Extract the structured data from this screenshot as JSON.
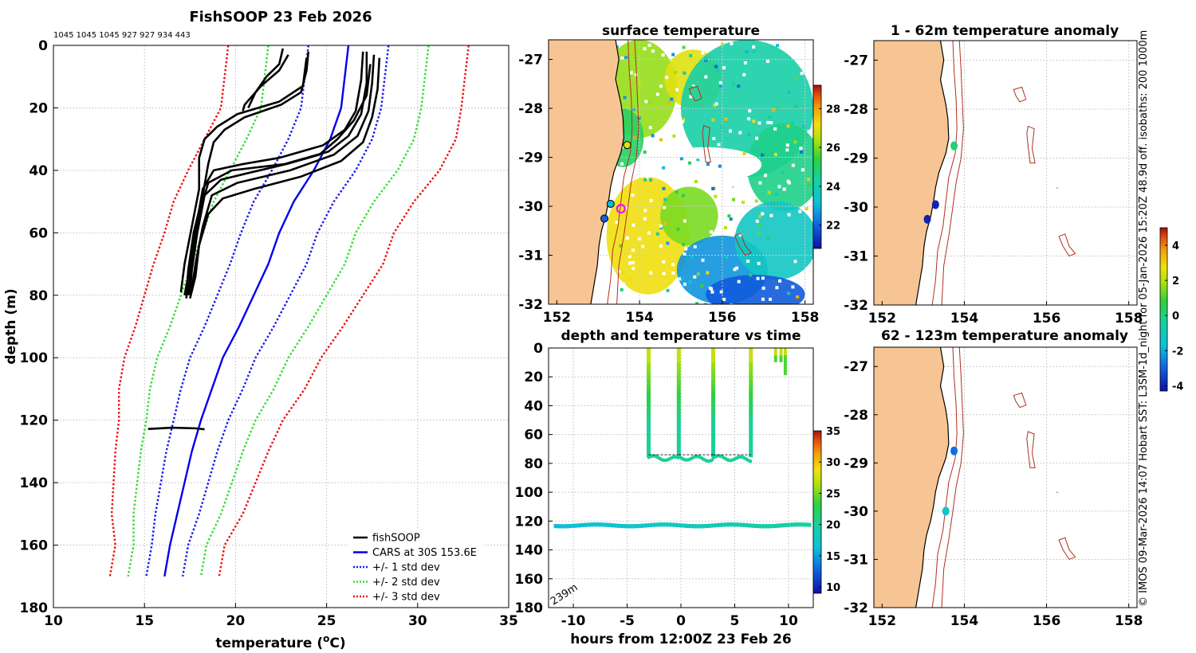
{
  "figure": {
    "title": "FishSOOP 23 Feb 2026",
    "drop_counts": "1045 1045 1045 927 927 934 443",
    "side_caption": "© IMOS 09-Mar-2026 14:07 Hobart SST: L3SM-1d_night for 05-Jan-2026 15:20Z 48.9d off. isobaths: 200  1000m"
  },
  "colors": {
    "fishsoop": "#000000",
    "cars": "#0000ee",
    "std1": "#1a1aee",
    "std2": "#33dd33",
    "std3": "#ee1111",
    "land": "#f7c593",
    "coast": "#000000",
    "isobath": "#b03020",
    "grid": "#cccccc"
  },
  "chart_data": [
    {
      "id": "profile",
      "type": "line",
      "title": "",
      "xlabel": "temperature (°C)",
      "ylabel": "depth (m)",
      "xlim": [
        10,
        35
      ],
      "ylim": [
        180,
        0
      ],
      "xticks": [
        10,
        15,
        20,
        25,
        30,
        35
      ],
      "yticks": [
        0,
        20,
        40,
        60,
        80,
        100,
        120,
        140,
        160,
        180
      ],
      "grid": true,
      "legend": {
        "placement": "bottom-right",
        "entries": [
          "fishSOOP",
          "CARS at 30S 153.6E",
          "+/- 1 std dev",
          "+/- 2 std dev",
          "+/- 3 std dev"
        ]
      },
      "cars_mean": {
        "depth": [
          0,
          10,
          20,
          30,
          40,
          50,
          60,
          70,
          80,
          90,
          100,
          110,
          120,
          130,
          140,
          150,
          160,
          170
        ],
        "temp": [
          26.2,
          26.0,
          25.8,
          25.2,
          24.3,
          23.2,
          22.4,
          21.8,
          21.0,
          20.2,
          19.3,
          18.7,
          18.1,
          17.6,
          17.2,
          16.8,
          16.4,
          16.1
        ]
      },
      "std_offsets": {
        "depth": [
          0,
          10,
          20,
          30,
          40,
          50,
          60,
          70,
          80,
          90,
          100,
          110,
          120,
          130,
          140,
          150,
          160,
          170
        ],
        "sd": [
          2.2,
          2.2,
          2.2,
          2.3,
          2.3,
          2.2,
          2.1,
          2.1,
          2.0,
          1.9,
          1.8,
          1.7,
          1.5,
          1.4,
          1.3,
          1.2,
          1.0,
          1.0
        ]
      },
      "fishsoop_profiles": [
        [
          [
            22.6,
            1
          ],
          [
            22.4,
            6
          ],
          [
            21.7,
            10
          ],
          [
            21.1,
            15
          ],
          [
            20.7,
            20
          ]
        ],
        [
          [
            22.9,
            3
          ],
          [
            22.4,
            8
          ],
          [
            21.4,
            13
          ],
          [
            20.5,
            19
          ],
          [
            20.4,
            21
          ]
        ],
        [
          [
            24.0,
            2
          ],
          [
            23.9,
            8
          ],
          [
            23.6,
            15
          ],
          [
            22.5,
            19
          ],
          [
            20.5,
            23
          ],
          [
            19.4,
            27
          ],
          [
            18.8,
            31
          ],
          [
            18.5,
            38
          ],
          [
            18.2,
            48
          ],
          [
            17.7,
            60
          ],
          [
            17.4,
            72
          ],
          [
            17.3,
            81
          ]
        ],
        [
          [
            23.9,
            4
          ],
          [
            23.7,
            13
          ],
          [
            22.4,
            18
          ],
          [
            20.1,
            22
          ],
          [
            19.0,
            26
          ],
          [
            18.3,
            30
          ],
          [
            18.0,
            36
          ],
          [
            18.0,
            46
          ],
          [
            17.6,
            58
          ],
          [
            17.2,
            70
          ],
          [
            17.0,
            79
          ]
        ],
        [
          [
            27.2,
            2
          ],
          [
            27.2,
            12
          ],
          [
            26.9,
            22
          ],
          [
            26.2,
            29
          ],
          [
            25.1,
            34
          ],
          [
            22.7,
            38
          ],
          [
            19.8,
            40
          ],
          [
            18.5,
            44
          ],
          [
            18.1,
            52
          ],
          [
            17.8,
            62
          ],
          [
            17.5,
            74
          ],
          [
            17.4,
            80
          ]
        ],
        [
          [
            27.6,
            3
          ],
          [
            27.5,
            12
          ],
          [
            27.3,
            21
          ],
          [
            26.7,
            29
          ],
          [
            25.4,
            35
          ],
          [
            23.0,
            40
          ],
          [
            20.1,
            44
          ],
          [
            18.7,
            48
          ],
          [
            18.2,
            58
          ],
          [
            17.8,
            70
          ],
          [
            17.6,
            78
          ]
        ],
        [
          [
            27.0,
            2
          ],
          [
            26.9,
            11
          ],
          [
            26.6,
            21
          ],
          [
            26.0,
            27
          ],
          [
            24.8,
            32
          ],
          [
            22.4,
            36
          ],
          [
            20.4,
            38
          ],
          [
            18.8,
            40
          ],
          [
            18.2,
            46
          ],
          [
            17.9,
            56
          ],
          [
            17.6,
            68
          ],
          [
            17.2,
            80
          ]
        ],
        [
          [
            27.9,
            4
          ],
          [
            27.8,
            14
          ],
          [
            27.5,
            23
          ],
          [
            27.0,
            31
          ],
          [
            25.8,
            37
          ],
          [
            23.6,
            42
          ],
          [
            21.0,
            46
          ],
          [
            19.3,
            49
          ],
          [
            18.5,
            54
          ],
          [
            18.0,
            64
          ],
          [
            17.8,
            74
          ],
          [
            17.5,
            81
          ]
        ],
        [
          [
            27.4,
            6
          ],
          [
            27.2,
            16
          ],
          [
            26.5,
            24
          ],
          [
            25.6,
            30
          ],
          [
            24.6,
            35
          ],
          [
            22.8,
            38
          ],
          [
            20.6,
            41
          ],
          [
            19.2,
            43
          ],
          [
            18.3,
            48
          ],
          [
            17.9,
            60
          ],
          [
            17.6,
            72
          ],
          [
            17.5,
            80
          ]
        ],
        [
          [
            15.2,
            122.8
          ],
          [
            16.5,
            122.4
          ],
          [
            17.8,
            122.6
          ],
          [
            18.3,
            122.9
          ]
        ]
      ]
    },
    {
      "id": "sst",
      "type": "heatmap",
      "title": "surface temperature",
      "xlim": [
        151.8,
        158.2
      ],
      "ylim": [
        -32,
        -26.6
      ],
      "xticks": [
        152,
        154,
        156,
        158
      ],
      "yticks": [
        -27,
        -28,
        -29,
        -30,
        -31,
        -32
      ],
      "colorbar": {
        "range": [
          20.8,
          29.2
        ],
        "ticks": [
          22,
          24,
          26,
          28
        ]
      },
      "stations": [
        {
          "lon": 153.7,
          "lat": -28.75,
          "temp": 27.0
        },
        {
          "lon": 153.3,
          "lat": -29.95,
          "temp": 23.0
        },
        {
          "lon": 153.15,
          "lat": -30.25,
          "temp": 22.0
        },
        {
          "lon": 153.55,
          "lat": -30.05,
          "temp": 0,
          "marker": "ship"
        }
      ]
    },
    {
      "id": "depth_time",
      "type": "scatter",
      "title": "depth and temperature vs time",
      "xlabel": "hours from 12:00Z 23 Feb 26",
      "xlim": [
        -12.3,
        12.3
      ],
      "ylim": [
        180,
        0
      ],
      "xticks": [
        -10,
        -5,
        0,
        5,
        10
      ],
      "yticks": [
        0,
        20,
        40,
        60,
        80,
        100,
        120,
        140,
        160,
        180
      ],
      "annotation": "239m",
      "colorbar": {
        "range": [
          9,
          35
        ],
        "ticks": [
          10,
          15,
          20,
          25,
          30,
          35
        ]
      },
      "casts": [
        -3.0,
        -0.2,
        3.0,
        6.5
      ],
      "bottom_depth": 76,
      "late_casts": [
        {
          "t": 8.8,
          "bottom": 10
        },
        {
          "t": 9.3,
          "bottom": 10
        },
        {
          "t": 9.7,
          "bottom": 18
        }
      ],
      "deep_set": {
        "t": [
          -11.7,
          12.0
        ],
        "depth": 123
      }
    },
    {
      "id": "anom1",
      "type": "scatter",
      "title": "1 - 62m temperature anomaly",
      "xlim": [
        151.8,
        158.2
      ],
      "ylim": [
        -32,
        -26.6
      ],
      "xticks": [
        152,
        154,
        156,
        158
      ],
      "yticks": [
        -27,
        -28,
        -29,
        -30,
        -31,
        -32
      ],
      "points": [
        {
          "lon": 153.75,
          "lat": -28.75,
          "anomaly": 0.2
        },
        {
          "lon": 153.3,
          "lat": -29.95,
          "anomaly": -4.0
        },
        {
          "lon": 153.1,
          "lat": -30.25,
          "anomaly": -4.0
        }
      ]
    },
    {
      "id": "anom2",
      "type": "scatter",
      "title": "62 - 123m temperature anomaly",
      "xlim": [
        151.8,
        158.2
      ],
      "ylim": [
        -32,
        -26.6
      ],
      "xticks": [
        152,
        154,
        156,
        158
      ],
      "yticks": [
        -27,
        -28,
        -29,
        -30,
        -31,
        -32
      ],
      "points": [
        {
          "lon": 153.75,
          "lat": -28.75,
          "anomaly": -2.8
        },
        {
          "lon": 153.55,
          "lat": -30.0,
          "anomaly": -1.2
        }
      ],
      "colorbar": {
        "range": [
          -4.3,
          5.0
        ],
        "ticks": [
          -4,
          -2,
          0,
          2,
          4
        ]
      }
    }
  ]
}
